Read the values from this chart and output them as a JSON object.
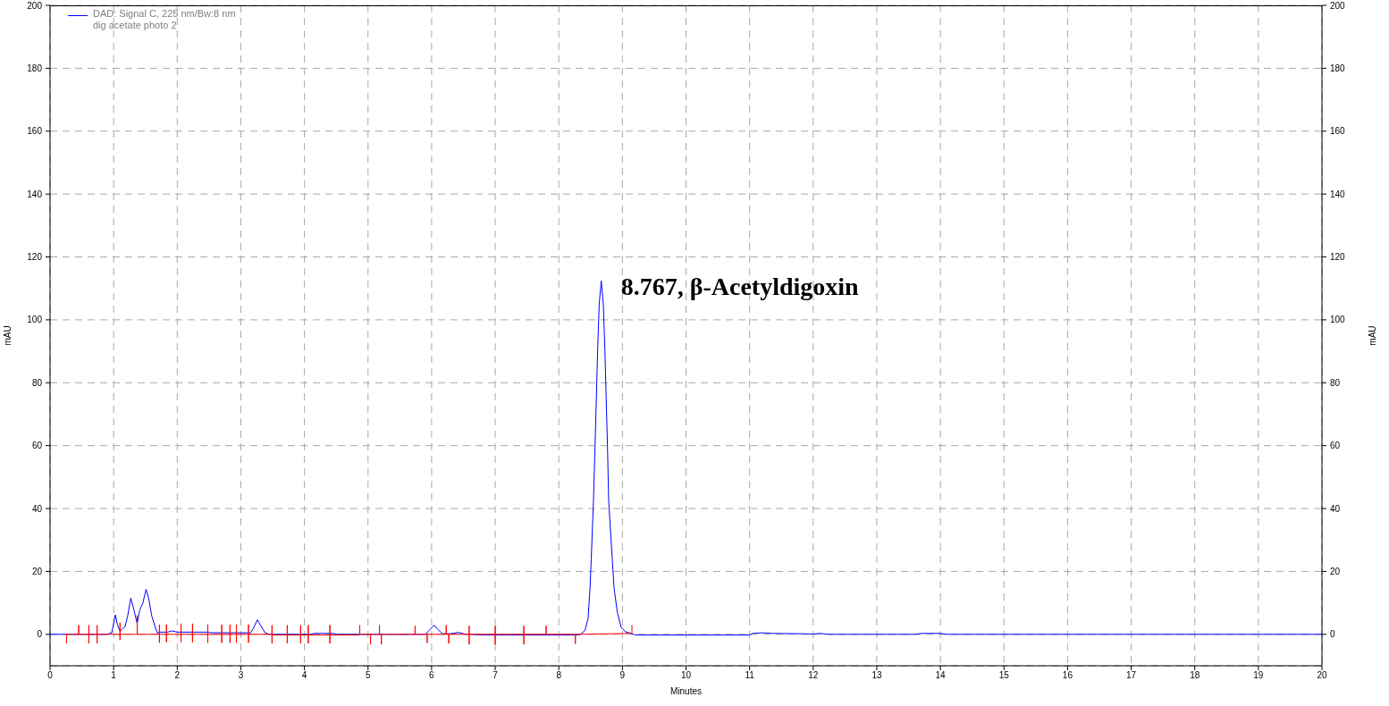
{
  "chart_data": {
    "type": "line",
    "xlabel": "Minutes",
    "ylabel": "mAU",
    "y2label": "mAU",
    "xlim": [
      0,
      20
    ],
    "xticks": [
      0,
      1,
      2,
      3,
      4,
      5,
      6,
      7,
      8,
      9,
      10,
      11,
      12,
      13,
      14,
      15,
      16,
      17,
      18,
      19,
      20
    ],
    "ylim": [
      -10,
      200
    ],
    "yticks": [
      0,
      20,
      40,
      60,
      80,
      100,
      120,
      140,
      160,
      180,
      200
    ],
    "y2lim": [
      -10,
      200
    ],
    "y2ticks": [
      0,
      20,
      40,
      60,
      80,
      100,
      120,
      140,
      160,
      180,
      200
    ],
    "grid": true,
    "legend": "top left",
    "marker": "none",
    "line_style": "solid",
    "series": [
      {
        "name": "DAD: Signal C, 225 nm/Bw:8 nm",
        "color": "#0000ff",
        "x": [
          0,
          0.9,
          0.97,
          1.0,
          1.026,
          1.06,
          1.1,
          1.18,
          1.22,
          1.27,
          1.32,
          1.37,
          1.41,
          1.46,
          1.51,
          1.55,
          1.6,
          1.65,
          1.69,
          1.72,
          1.85,
          1.92,
          2.0,
          2.5,
          2.52,
          3.1,
          3.15,
          3.2,
          3.26,
          3.32,
          3.38,
          3.45,
          4.1,
          4.15,
          4.45,
          4.5,
          5.9,
          5.96,
          6.04,
          6.1,
          6.17,
          6.3,
          6.42,
          6.52,
          6.6,
          6.8,
          8.3,
          8.34,
          8.41,
          8.46,
          8.49,
          8.51,
          8.545,
          8.57,
          8.61,
          8.635,
          8.667,
          8.7,
          8.725,
          8.765,
          8.784,
          8.84,
          8.87,
          8.92,
          8.98,
          9.05,
          9.14,
          9.2,
          11.0,
          11.05,
          11.2,
          11.35,
          11.8,
          12.0,
          12.1,
          12.25,
          13.6,
          13.7,
          14.0,
          14.1,
          20
        ],
        "values": [
          0,
          0,
          0.5,
          3.5,
          6.2,
          3.0,
          1.0,
          2.5,
          5.8,
          11.5,
          7.7,
          3.4,
          7.7,
          10,
          14.3,
          11.5,
          5.8,
          2.5,
          0.3,
          0.7,
          0.7,
          1.1,
          0.7,
          0.7,
          0.5,
          0.5,
          0.4,
          2.0,
          4.6,
          2.5,
          0.5,
          0,
          0,
          0.3,
          0.3,
          0,
          0,
          1.2,
          2.9,
          1.5,
          0.2,
          0.2,
          0.6,
          0.1,
          0,
          -0.2,
          -0.2,
          0,
          1.2,
          5,
          14.5,
          24,
          42.6,
          60,
          90,
          105,
          112.4,
          105,
          90,
          60,
          42.6,
          24,
          14.5,
          7,
          2.2,
          0.8,
          0.3,
          -0.2,
          -0.2,
          0.3,
          0.5,
          0.3,
          0.2,
          0.1,
          0.3,
          0,
          0,
          0.3,
          0.3,
          0,
          0
        ]
      },
      {
        "color": "#ff0000",
        "x": [
          0.26,
          0.26,
          0.26,
          0.45,
          0.45,
          0.45,
          0.61,
          0.61,
          0.61,
          0.61,
          0.74,
          0.74,
          0.74,
          0.74,
          1.1,
          1.1,
          1.1,
          1.1,
          1.37,
          1.37,
          1.37,
          1.72,
          1.72,
          1.72,
          1.72,
          1.83,
          1.83,
          1.83,
          1.83,
          2.06,
          2.06,
          2.06,
          2.06,
          2.24,
          2.24,
          2.24,
          2.24,
          2.48,
          2.48,
          2.48,
          2.48,
          2.7,
          2.7,
          2.7,
          2.7,
          2.83,
          2.83,
          2.83,
          2.83,
          2.93,
          2.93,
          2.93,
          2.93,
          3.12,
          3.12,
          3.12,
          3.12,
          3.49,
          3.49,
          3.49,
          3.49,
          3.55,
          3.73,
          3.73,
          3.73,
          3.73,
          3.94,
          3.94,
          3.94,
          3.94,
          4.06,
          4.06,
          4.06,
          4.06,
          4.4,
          4.4,
          4.4,
          4.4,
          4.87,
          4.87,
          4.87,
          5.04,
          5.04,
          5.04,
          5.18,
          5.18,
          5.18,
          5.21,
          5.21,
          5.21,
          5.74,
          5.74,
          5.74,
          5.93,
          5.93,
          5.93,
          6.23,
          6.23,
          6.23,
          6.27,
          6.27,
          6.27,
          6.59,
          6.59,
          6.59,
          6.59,
          7.0,
          7.0,
          7.0,
          7.0,
          7.45,
          7.45,
          7.45,
          7.45,
          7.8,
          7.8,
          7.8,
          8.26,
          8.26,
          8.26,
          9.15,
          9.15
        ],
        "values": [
          0,
          -2.9,
          0,
          0,
          2.9,
          0,
          0,
          2.9,
          -2.9,
          0,
          0,
          2.9,
          -2.9,
          0,
          0,
          3.7,
          -1.8,
          0,
          0,
          6,
          0,
          0,
          3.1,
          -2.7,
          0,
          0,
          3.1,
          -2.5,
          0,
          0,
          3.4,
          -2.5,
          0,
          0,
          3.4,
          -2.5,
          0,
          0,
          3.1,
          -2.7,
          0,
          0,
          3.1,
          -2.7,
          0,
          0,
          3.1,
          -2.7,
          0,
          0,
          3.1,
          -2.7,
          0,
          0,
          3.1,
          -2.7,
          0,
          0,
          2.9,
          -2.9,
          -0.2,
          -0.2,
          -0.2,
          2.9,
          -2.9,
          -0.2,
          -0.2,
          2.9,
          -2.9,
          -0.2,
          -0.2,
          2.9,
          -2.9,
          -0.2,
          -0.2,
          2.9,
          -2.9,
          -0.2,
          -0.2,
          2.9,
          0,
          0,
          -3.2,
          0,
          0,
          2.9,
          0,
          0,
          -3.2,
          0,
          0,
          2.7,
          0,
          0,
          -2.7,
          0,
          0,
          2.9,
          0,
          0,
          -2.9,
          0,
          0,
          2.7,
          -3.2,
          0,
          0,
          2.7,
          -3.2,
          0,
          0,
          2.7,
          -3.2,
          0,
          0,
          2.7,
          0,
          0,
          -3.0,
          0,
          0.3,
          2.8
        ]
      }
    ],
    "annotations": [
      {
        "text": "8.767, β-Acetyldigoxin",
        "x": 8.667,
        "y": 112.4
      },
      "dig acetate photo 2"
    ]
  }
}
